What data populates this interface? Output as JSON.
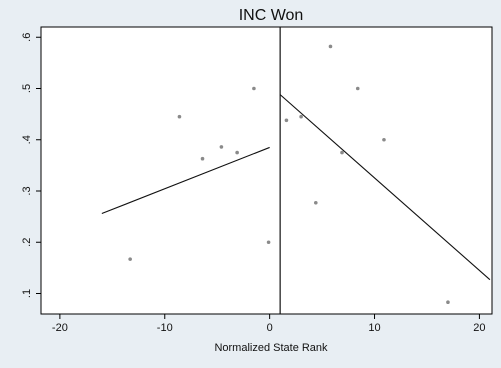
{
  "chart_data": {
    "type": "scatter",
    "title": "INC Won",
    "xlabel": "Normalized State Rank",
    "ylabel": "",
    "xlim": [
      -21.8,
      21.2
    ],
    "ylim": [
      0.06,
      0.62
    ],
    "xticks": [
      -20,
      -10,
      0,
      10,
      20
    ],
    "xtick_labels": [
      "-20",
      "-10",
      "0",
      "10",
      "20"
    ],
    "yticks": [
      0.1,
      0.2,
      0.3,
      0.4,
      0.5,
      0.6
    ],
    "ytick_labels": [
      ".1",
      ".2",
      ".3",
      ".4",
      ".5",
      ".6"
    ],
    "grid": false,
    "legend": "none",
    "cutoff_x": 1,
    "points": [
      {
        "x": -13.3,
        "y": 0.167
      },
      {
        "x": -8.6,
        "y": 0.445
      },
      {
        "x": -6.4,
        "y": 0.363
      },
      {
        "x": -4.6,
        "y": 0.386
      },
      {
        "x": -3.1,
        "y": 0.375
      },
      {
        "x": -1.5,
        "y": 0.5
      },
      {
        "x": -0.1,
        "y": 0.2
      },
      {
        "x": 1.6,
        "y": 0.438
      },
      {
        "x": 3.0,
        "y": 0.445
      },
      {
        "x": 4.4,
        "y": 0.277
      },
      {
        "x": 5.8,
        "y": 0.582
      },
      {
        "x": 6.9,
        "y": 0.375
      },
      {
        "x": 8.4,
        "y": 0.5
      },
      {
        "x": 10.9,
        "y": 0.4
      },
      {
        "x": 17.0,
        "y": 0.083
      }
    ],
    "fit_lines": [
      {
        "x": [
          -16.0,
          0.0
        ],
        "y": [
          0.256,
          0.385
        ]
      },
      {
        "x": [
          1.0,
          21.0
        ],
        "y": [
          0.488,
          0.127
        ]
      }
    ],
    "colors": {
      "background": "#e8eef3",
      "plot_background": "#ffffff",
      "points": "#8a8a8a",
      "lines": "#111111"
    }
  }
}
